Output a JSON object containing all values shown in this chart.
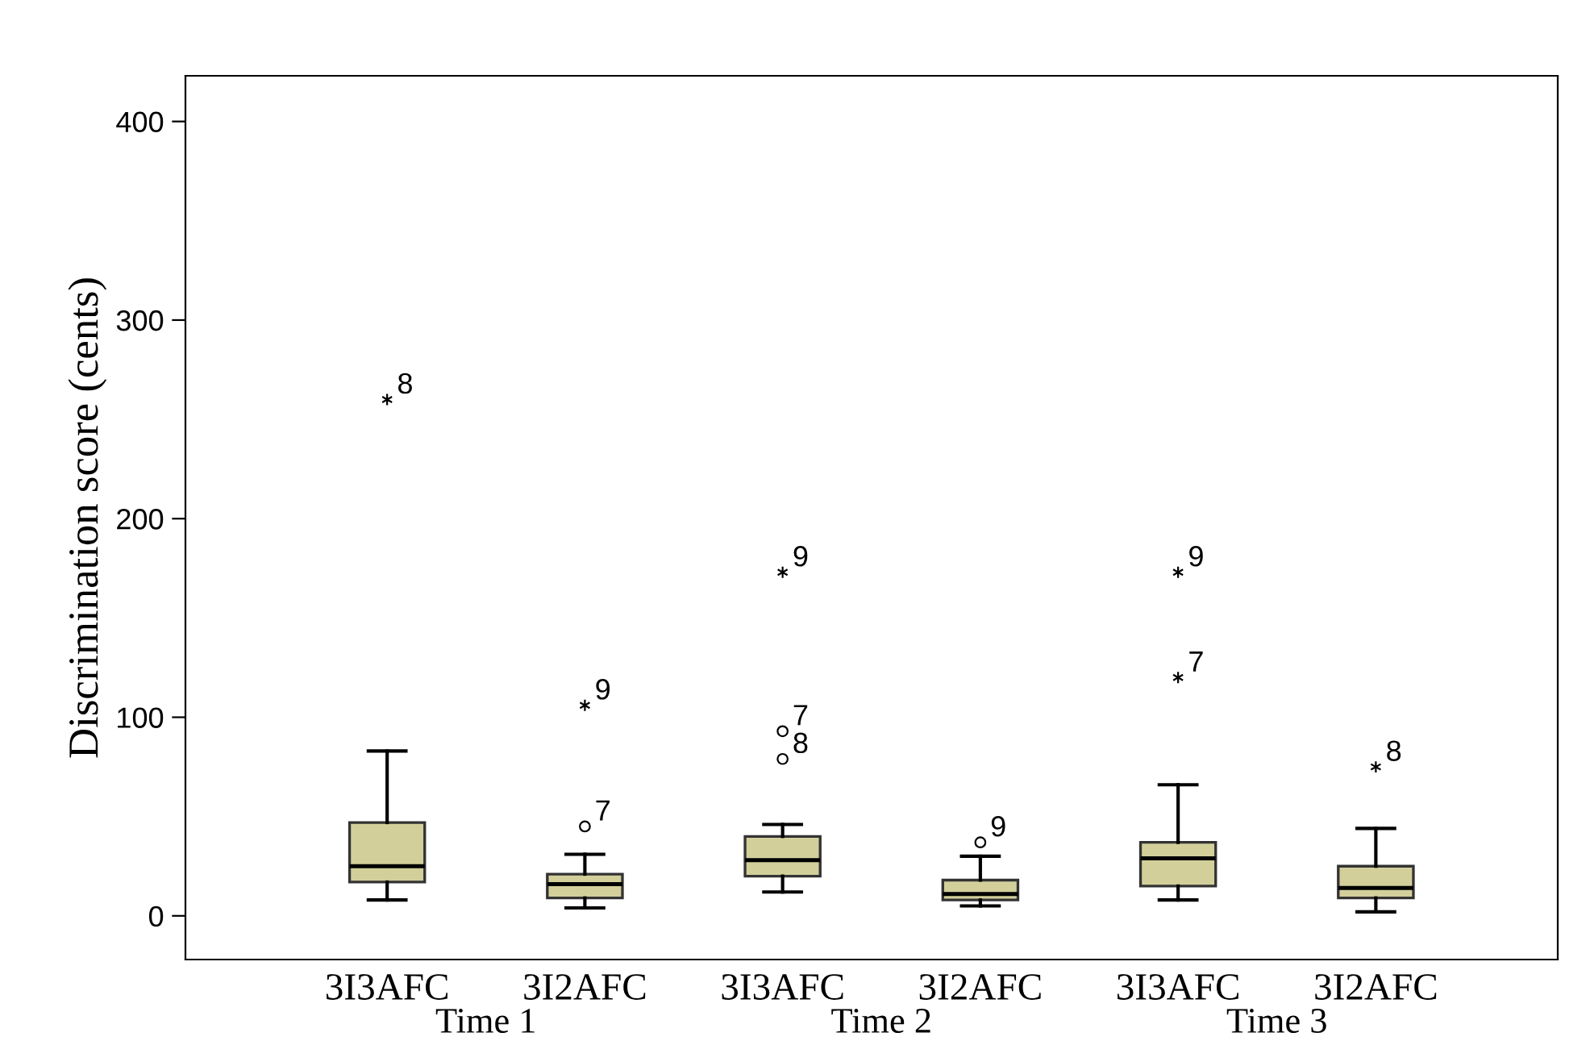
{
  "chart_data": {
    "type": "box",
    "ylabel": "Discrimination score (cents)",
    "categories": [
      "3I3AFC",
      "3I2AFC",
      "3I3AFC",
      "3I2AFC",
      "3I3AFC",
      "3I2AFC"
    ],
    "series": [
      {
        "color": "#d3cf9b",
        "boxes": [
          {
            "low": 8,
            "q1": 17,
            "median": 25,
            "q3": 47,
            "high": 83,
            "outliers": [
              260
            ]
          },
          {
            "low": 4,
            "q1": 9,
            "median": 16,
            "q3": 21,
            "high": 31,
            "outliers": [
              45,
              106
            ]
          },
          {
            "low": 12,
            "q1": 20,
            "median": 28,
            "q3": 40,
            "high": 46,
            "outliers": [
              79,
              93,
              173
            ]
          },
          {
            "low": 5,
            "q1": 8,
            "median": 11,
            "q3": 18,
            "high": 30,
            "outliers": [
              37
            ]
          },
          {
            "low": 8,
            "q1": 15,
            "median": 29,
            "q3": 37,
            "high": 66,
            "outliers": [
              120,
              173
            ]
          },
          {
            "low": 2,
            "q1": 9,
            "median": 14,
            "q3": 25,
            "high": 44,
            "outliers": [
              75
            ]
          }
        ]
      }
    ],
    "ylim": [
      -22,
      423
    ],
    "yticks": [
      0,
      100,
      200,
      300,
      400
    ],
    "grid": false,
    "legend": false,
    "annotations": [
      "8",
      "7",
      "9",
      "8",
      "7",
      "9",
      "9",
      "7",
      "9",
      "8",
      "Time 1",
      "Time 2",
      "Time 3"
    ]
  }
}
